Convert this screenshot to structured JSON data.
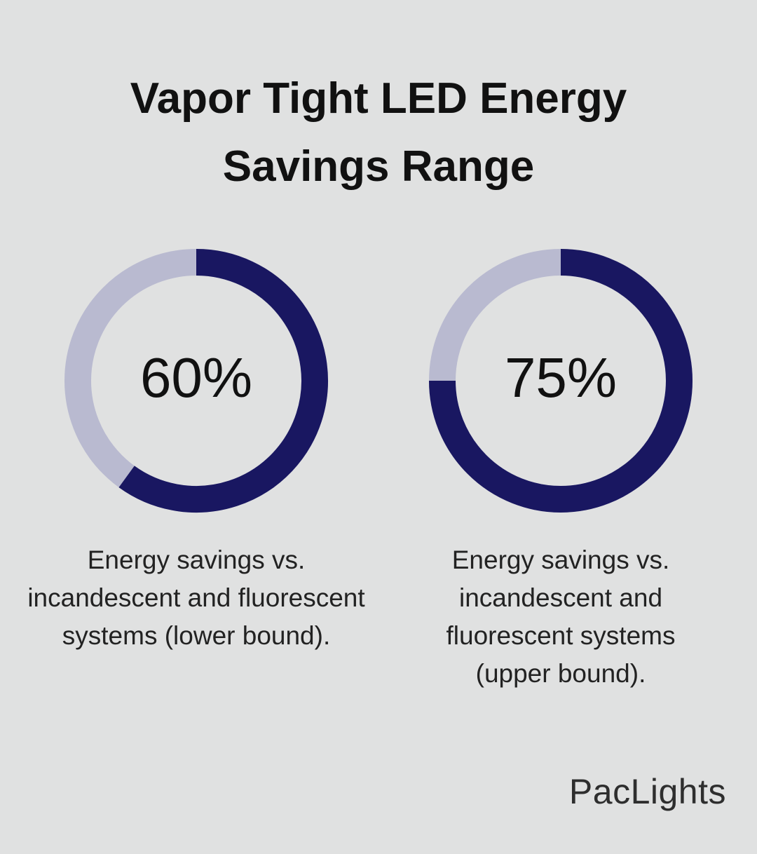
{
  "header": {
    "title": "Vapor Tight LED Energy Savings Range"
  },
  "chart_data": [
    {
      "type": "donut",
      "values": [
        60
      ],
      "value_labels": [
        "60%"
      ],
      "caption": "Energy savings vs. incandescent and fluorescent systems (lower bound).",
      "color": "#191761",
      "track_color": "#b9bad0"
    },
    {
      "type": "donut",
      "values": [
        75
      ],
      "value_labels": [
        "75%"
      ],
      "caption": "Energy savings vs. incandescent and fluorescent systems (upper bound).",
      "color": "#191761",
      "track_color": "#b9bad0"
    }
  ],
  "footer": {
    "brand": "PacLights"
  }
}
